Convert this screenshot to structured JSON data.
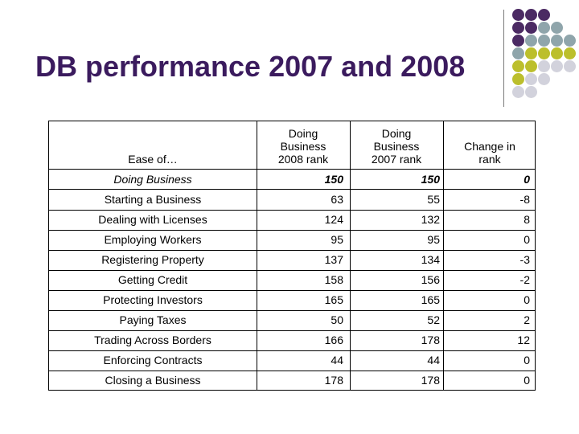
{
  "slide": {
    "title": "DB performance 2007 and 2008"
  },
  "decoration": {
    "dot_colors": {
      "purple": "#4b2a63",
      "gray": "#8fa5ab",
      "olive": "#bcbf2c",
      "light": "#d2d2dc"
    },
    "dot_grid": [
      [
        "purple",
        "purple",
        "purple",
        "",
        ""
      ],
      [
        "purple",
        "purple",
        "gray",
        "gray",
        ""
      ],
      [
        "purple",
        "gray",
        "gray",
        "gray",
        "gray"
      ],
      [
        "gray",
        "olive",
        "olive",
        "olive",
        "olive"
      ],
      [
        "olive",
        "olive",
        "light",
        "light",
        "light"
      ],
      [
        "olive",
        "light",
        "light",
        "",
        ""
      ],
      [
        "light",
        "light",
        "",
        "",
        ""
      ]
    ]
  },
  "table": {
    "header": {
      "ease_of": "Ease of…",
      "col1": [
        "Doing",
        "Business",
        "2008 rank"
      ],
      "col2": [
        "Doing",
        "Business",
        "2007 rank"
      ],
      "col3": [
        "Change in",
        "rank"
      ]
    },
    "summary_row": {
      "label": "Doing Business",
      "rank_2008": "150",
      "rank_2007": "150",
      "change": "0"
    },
    "rows": [
      {
        "label": "Starting a Business",
        "rank_2008": "63",
        "rank_2007": "55",
        "change": "-8"
      },
      {
        "label": "Dealing with Licenses",
        "rank_2008": "124",
        "rank_2007": "132",
        "change": "8"
      },
      {
        "label": "Employing Workers",
        "rank_2008": "95",
        "rank_2007": "95",
        "change": "0"
      },
      {
        "label": "Registering Property",
        "rank_2008": "137",
        "rank_2007": "134",
        "change": "-3"
      },
      {
        "label": "Getting Credit",
        "rank_2008": "158",
        "rank_2007": "156",
        "change": "-2"
      },
      {
        "label": "Protecting Investors",
        "rank_2008": "165",
        "rank_2007": "165",
        "change": "0"
      },
      {
        "label": "Paying Taxes",
        "rank_2008": "50",
        "rank_2007": "52",
        "change": "2"
      },
      {
        "label": "Trading Across Borders",
        "rank_2008": "166",
        "rank_2007": "178",
        "change": "12"
      },
      {
        "label": "Enforcing Contracts",
        "rank_2008": "44",
        "rank_2007": "44",
        "change": "0"
      },
      {
        "label": "Closing a Business",
        "rank_2008": "178",
        "rank_2007": "178",
        "change": "0"
      }
    ]
  }
}
